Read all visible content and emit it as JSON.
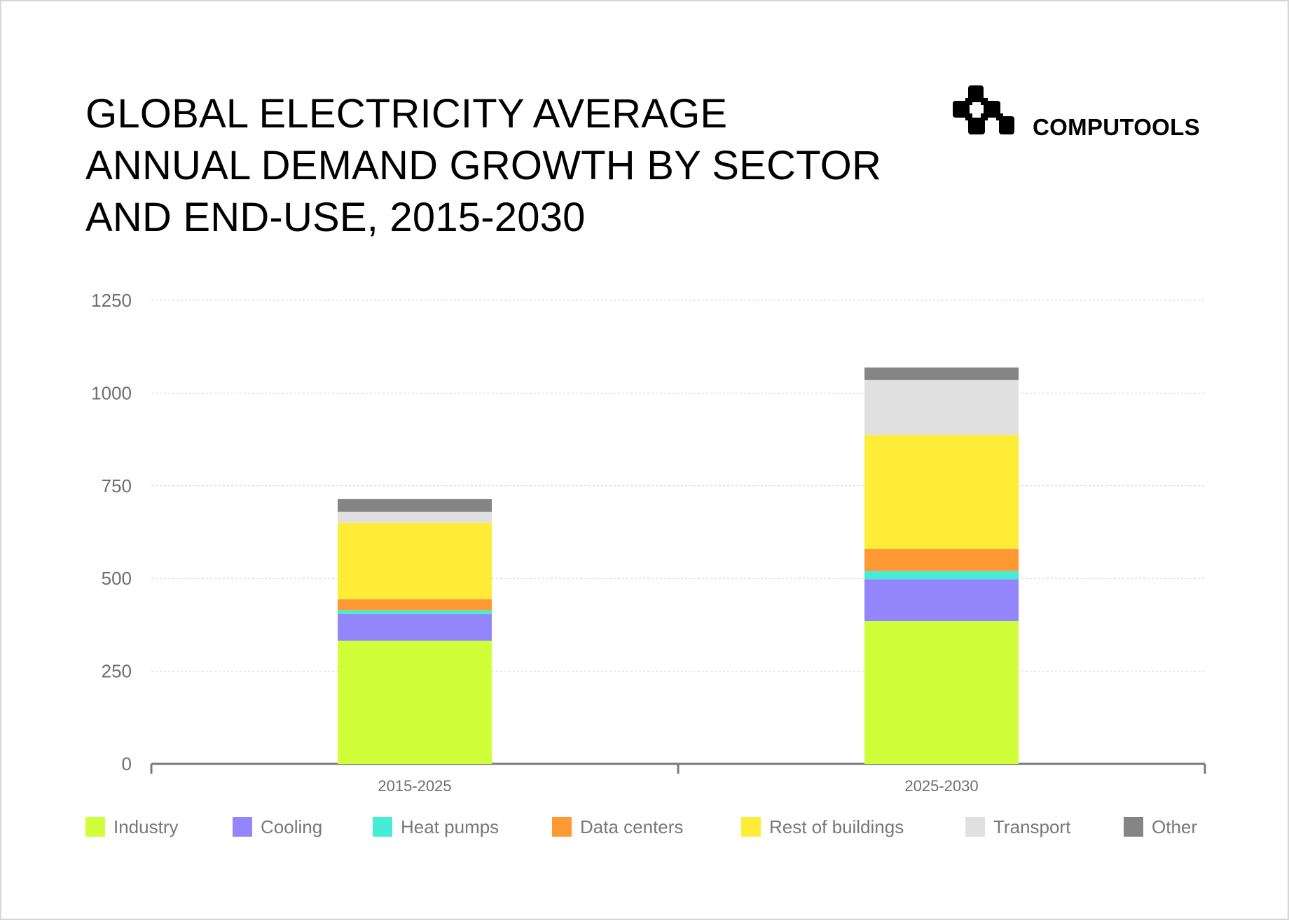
{
  "header": {
    "title_lines": [
      "GLOBAL ELECTRICITY AVERAGE",
      "ANNUAL DEMAND GROWTH BY SECTOR",
      "AND END-USE, 2015-2030"
    ]
  },
  "brand": {
    "name": "COMPUTOOLS",
    "icon": "computools-logo-icon"
  },
  "chart_data": {
    "type": "bar",
    "stacked": true,
    "title": "GLOBAL ELECTRICITY AVERAGE ANNUAL DEMAND GROWTH BY SECTOR AND END-USE, 2015-2030",
    "categories": [
      "2015-2025",
      "2025-2030"
    ],
    "xlabel": "",
    "ylabel": "",
    "ylim": [
      0,
      1250
    ],
    "yticks": [
      0,
      250,
      500,
      750,
      1000,
      1250
    ],
    "grid": true,
    "legend_position": "bottom",
    "series": [
      {
        "name": "Industry",
        "color": "#d0ff3a",
        "values": [
          332,
          385
        ]
      },
      {
        "name": "Cooling",
        "color": "#9386fb",
        "values": [
          72,
          113
        ]
      },
      {
        "name": "Heat pumps",
        "color": "#45ecd6",
        "values": [
          10,
          22
        ]
      },
      {
        "name": "Data centers",
        "color": "#ff9933",
        "values": [
          30,
          60
        ]
      },
      {
        "name": "Rest of buildings",
        "color": "#ffec37",
        "values": [
          206,
          307
        ]
      },
      {
        "name": "Transport",
        "color": "#e0e0e0",
        "values": [
          30,
          148
        ]
      },
      {
        "name": "Other",
        "color": "#858585",
        "values": [
          34,
          34
        ]
      }
    ]
  }
}
